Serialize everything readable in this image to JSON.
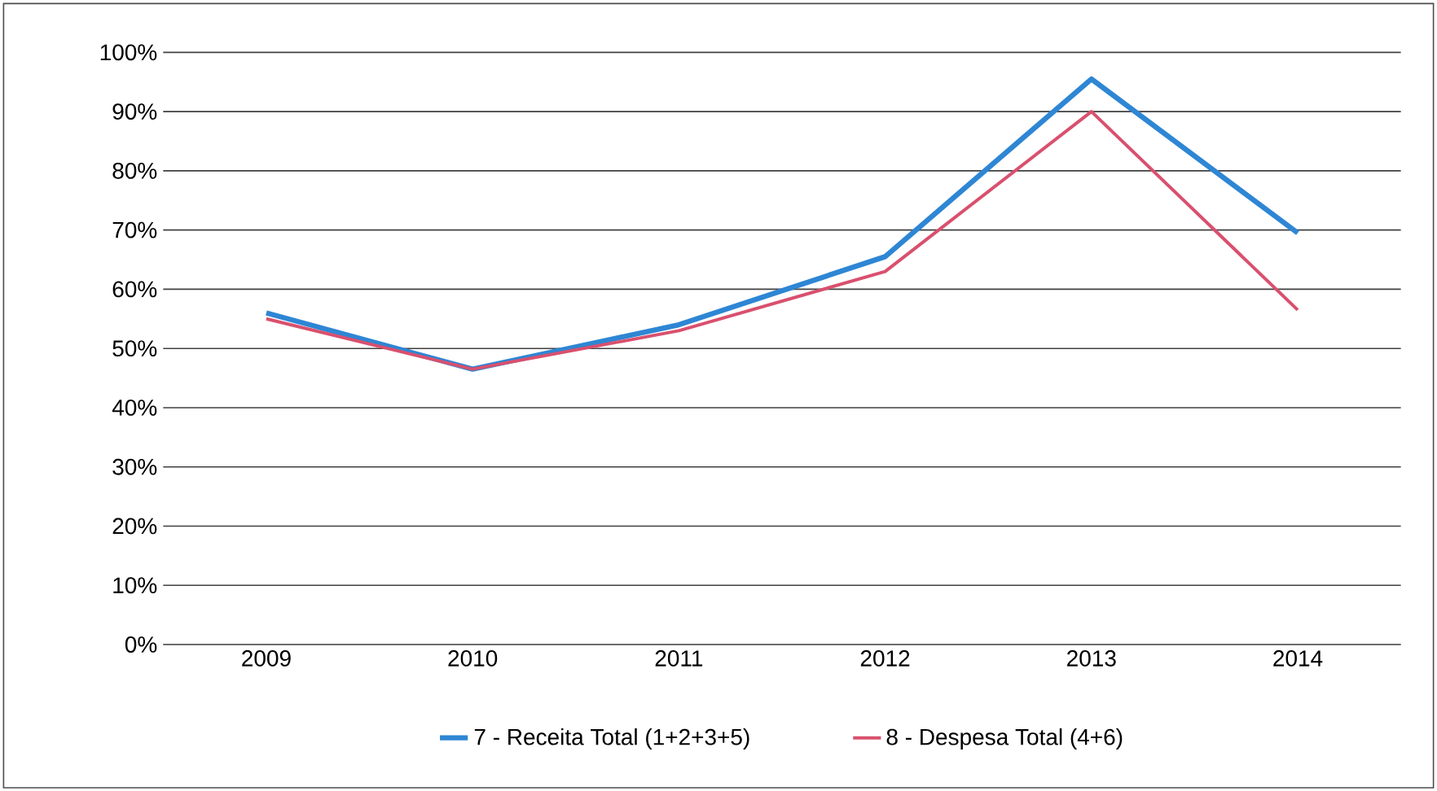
{
  "chart_data": {
    "type": "line",
    "categories": [
      "2009",
      "2010",
      "2011",
      "2012",
      "2013",
      "2014"
    ],
    "series": [
      {
        "name": "7 - Receita Total (1+2+3+5)",
        "color": "#2e86d4",
        "values": [
          56,
          46.5,
          54,
          65.5,
          95.5,
          69.5
        ]
      },
      {
        "name": "8 - Despesa Total (4+6)",
        "color": "#d9506e",
        "values": [
          55,
          46.5,
          53,
          63,
          90,
          56.5
        ]
      }
    ],
    "ylim": [
      0,
      100
    ],
    "yticks": [
      {
        "value": 0,
        "label": "0%"
      },
      {
        "value": 10,
        "label": "10%"
      },
      {
        "value": 20,
        "label": "20%"
      },
      {
        "value": 30,
        "label": "30%"
      },
      {
        "value": 40,
        "label": "40%"
      },
      {
        "value": 50,
        "label": "50%"
      },
      {
        "value": 60,
        "label": "60%"
      },
      {
        "value": 70,
        "label": "70%"
      },
      {
        "value": 80,
        "label": "80%"
      },
      {
        "value": 90,
        "label": "90%"
      },
      {
        "value": 100,
        "label": "100%"
      }
    ],
    "grid": "y",
    "legend": "bottom",
    "marker": "none",
    "line_style": "solid"
  }
}
